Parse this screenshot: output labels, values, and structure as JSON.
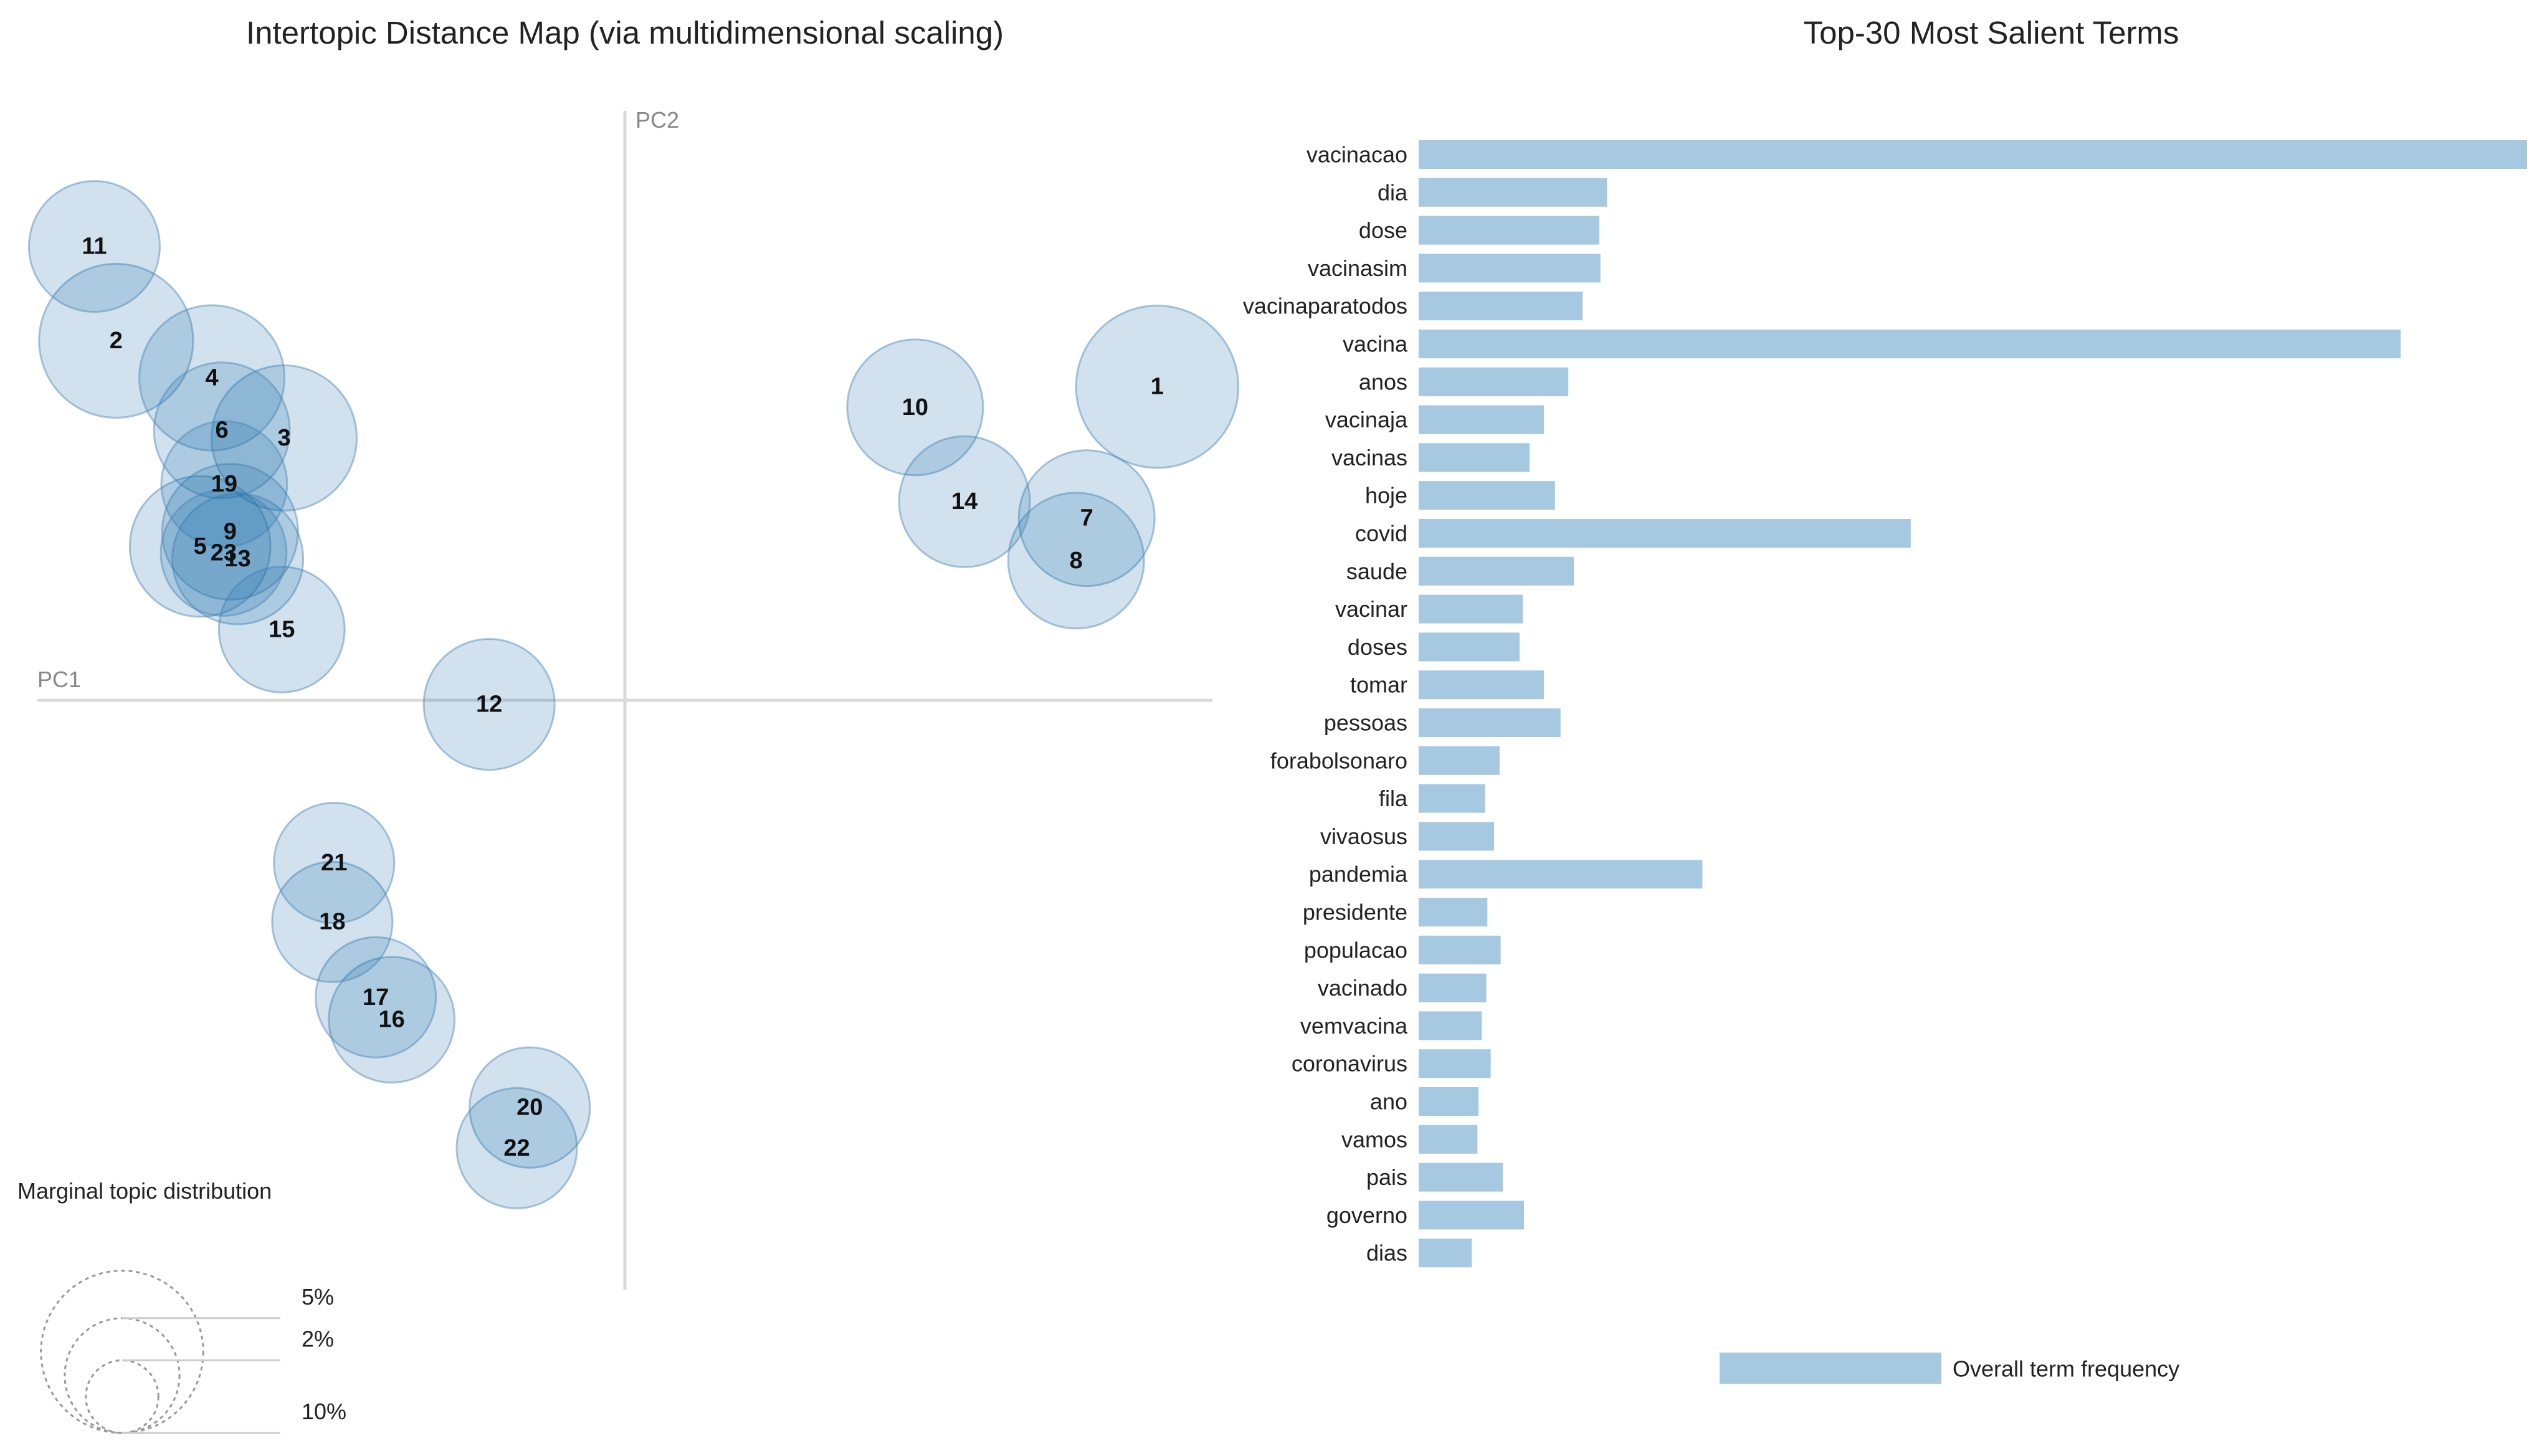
{
  "chart_data": [
    {
      "type": "scatter",
      "title": "Intertopic Distance Map (via multidimensional scaling)",
      "xlabel": "PC1",
      "ylabel": "PC2",
      "xlim": [
        -1,
        1
      ],
      "ylim": [
        -1,
        1
      ],
      "grid": false,
      "points": [
        {
          "label": "1",
          "x": 0.906,
          "y": 0.532,
          "size": 10.0
        },
        {
          "label": "2",
          "x": -0.866,
          "y": 0.61,
          "size": 9.0
        },
        {
          "label": "3",
          "x": -0.58,
          "y": 0.445,
          "size": 8.0
        },
        {
          "label": "4",
          "x": -0.703,
          "y": 0.547,
          "size": 8.0
        },
        {
          "label": "5",
          "x": -0.723,
          "y": 0.261,
          "size": 7.5
        },
        {
          "label": "6",
          "x": -0.686,
          "y": 0.458,
          "size": 7.0
        },
        {
          "label": "7",
          "x": 0.786,
          "y": 0.309,
          "size": 7.0
        },
        {
          "label": "8",
          "x": 0.768,
          "y": 0.237,
          "size": 7.0
        },
        {
          "label": "9",
          "x": -0.672,
          "y": 0.286,
          "size": 7.0
        },
        {
          "label": "10",
          "x": 0.494,
          "y": 0.497,
          "size": 7.0
        },
        {
          "label": "11",
          "x": -0.903,
          "y": 0.77,
          "size": 6.5
        },
        {
          "label": "12",
          "x": -0.231,
          "y": -0.007,
          "size": 6.5
        },
        {
          "label": "13",
          "x": -0.659,
          "y": 0.24,
          "size": 6.5
        },
        {
          "label": "14",
          "x": 0.578,
          "y": 0.337,
          "size": 6.5
        },
        {
          "label": "15",
          "x": -0.584,
          "y": 0.12,
          "size": 6.0
        },
        {
          "label": "16",
          "x": -0.397,
          "y": -0.542,
          "size": 6.0
        },
        {
          "label": "17",
          "x": -0.424,
          "y": -0.504,
          "size": 5.5
        },
        {
          "label": "18",
          "x": -0.498,
          "y": -0.376,
          "size": 5.5
        },
        {
          "label": "19",
          "x": -0.682,
          "y": 0.367,
          "size": 6.0
        },
        {
          "label": "20",
          "x": -0.162,
          "y": -0.691,
          "size": 5.5
        },
        {
          "label": "21",
          "x": -0.495,
          "y": -0.276,
          "size": 5.5
        },
        {
          "label": "22",
          "x": -0.184,
          "y": -0.76,
          "size": 5.5
        },
        {
          "label": "23",
          "x": -0.683,
          "y": 0.25,
          "size": 6.0
        }
      ],
      "size_legend": {
        "title": "Marginal topic distribution",
        "entries": [
          {
            "label": "2%",
            "value": 2
          },
          {
            "label": "5%",
            "value": 5
          },
          {
            "label": "10%",
            "value": 10
          }
        ]
      }
    },
    {
      "type": "bar",
      "orientation": "horizontal",
      "title": "Top-30 Most Salient Terms",
      "categories": [
        "vacinacao",
        "dia",
        "dose",
        "vacinasim",
        "vacinaparatodos",
        "vacina",
        "anos",
        "vacinaja",
        "vacinas",
        "hoje",
        "covid",
        "saude",
        "vacinar",
        "doses",
        "tomar",
        "pessoas",
        "forabolsonaro",
        "fila",
        "vivaosus",
        "pandemia",
        "presidente",
        "populacao",
        "vacinado",
        "vemvacina",
        "coronavirus",
        "ano",
        "vamos",
        "pais",
        "governo",
        "dias"
      ],
      "series": [
        {
          "name": "Overall term frequency",
          "values": [
            100,
            17,
            16.3,
            16.4,
            14.8,
            88.6,
            13.5,
            11.3,
            10,
            12.3,
            44.4,
            14,
            9.4,
            9.1,
            11.3,
            12.8,
            7.3,
            6,
            6.8,
            25.6,
            6.2,
            7.4,
            6.1,
            5.7,
            6.5,
            5.4,
            5.3,
            7.6,
            9.5,
            4.8
          ]
        }
      ],
      "xlim": [
        0,
        100
      ],
      "legend": {
        "position": "bottom",
        "label": "Overall term frequency",
        "color": "#a6c9e1"
      }
    }
  ]
}
